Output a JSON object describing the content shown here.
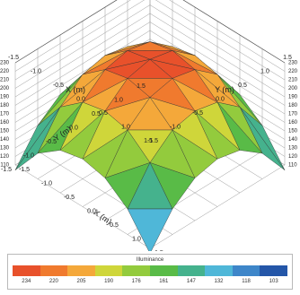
{
  "chart_data": {
    "type": "surface3d",
    "x_label": "X (m)",
    "y_label": "Y (m)",
    "z_label": "Illuminance (lx)",
    "x_ticks": [
      "-1.5",
      "-1.0",
      "-0.5",
      "0.0",
      "0.5",
      "1.0",
      "1.5"
    ],
    "y_ticks": [
      "-1.5",
      "-1.0",
      "-0.5",
      "0.0",
      "0.5",
      "1.0",
      "1.5"
    ],
    "x_range": [
      -1.5,
      1.5
    ],
    "y_range": [
      -1.5,
      1.5
    ],
    "z_range": [
      110,
      230
    ],
    "z_ticks": [
      "110",
      "120",
      "130",
      "140",
      "150",
      "160",
      "170",
      "180",
      "190",
      "200",
      "210",
      "220",
      "230"
    ],
    "x": [
      -1.5,
      -1.0,
      -0.5,
      0.0,
      0.5,
      1.0,
      1.5
    ],
    "y": [
      -1.5,
      -1.0,
      -0.5,
      0.0,
      0.5,
      1.0,
      1.5
    ],
    "z": [
      [
        104,
        140,
        160,
        166,
        160,
        140,
        104
      ],
      [
        140,
        178,
        200,
        206,
        200,
        178,
        140
      ],
      [
        160,
        200,
        222,
        228,
        222,
        200,
        160
      ],
      [
        166,
        206,
        228,
        234,
        228,
        206,
        166
      ],
      [
        160,
        200,
        222,
        228,
        222,
        200,
        160
      ],
      [
        140,
        178,
        200,
        206,
        200,
        178,
        140
      ],
      [
        104,
        140,
        160,
        166,
        160,
        140,
        104
      ]
    ],
    "grid": true,
    "legend": {
      "title": "Illuminance",
      "position": "bottom",
      "values": [
        "234",
        "220",
        "205",
        "190",
        "176",
        "161",
        "147",
        "132",
        "118",
        "103"
      ],
      "colors": [
        "#e8512b",
        "#f07a2e",
        "#f4a83a",
        "#cfd63a",
        "#93cb3d",
        "#59bb47",
        "#45b28d",
        "#4fb7d8",
        "#3e86c9",
        "#2456a8"
      ]
    }
  }
}
